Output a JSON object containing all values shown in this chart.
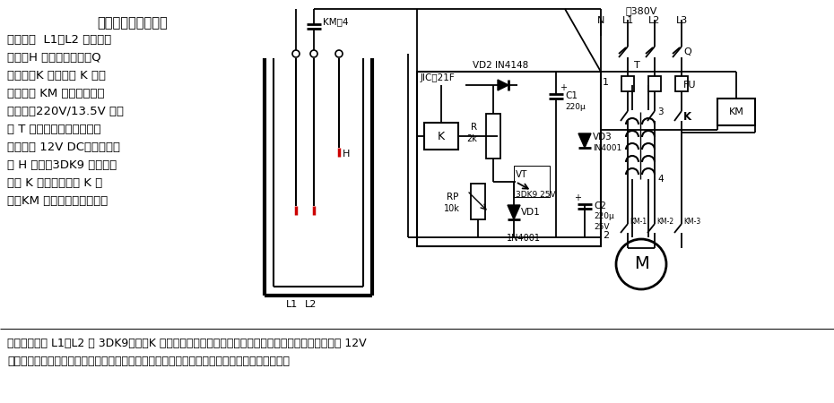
{
  "title": "简易电极式水位自动",
  "desc_lines": [
    "控制电路  L1、L2 是低水位",
    "电极，H 是高水位电极，Q",
    "闭合后，K 的常闭点 K 使交",
    "流接触器 KM 得电，水泵电",
    "机启动。220V/13.5V 变压",
    "器 T 的次级电压经整流、滤",
    "波后提供 12V DC。当水位升",
    "到 H 点时，3DK9 导通，继",
    "电器 K 吸合，常闭点 K 断",
    "开，KM 失电，水泵停机。直"
  ],
  "bottom1": "到水位降低于 L1、L2 时 3DK9截止，K 失电，其常闭触点再次启动水泵电机。图中继电机选用工作于 12V",
  "bottom2": "电压、触点容量与交流接触器相适应的型号。此电路适用于厂矿企业贮水池、水塔的供水控制。",
  "bg": "#ffffff",
  "black": "#000000",
  "red": "#cc0000"
}
